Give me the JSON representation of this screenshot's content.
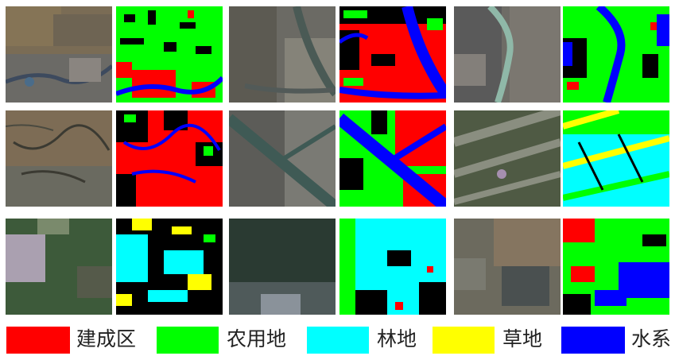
{
  "legend": [
    {
      "label": "建成区",
      "color": "#ff0000"
    },
    {
      "label": "农用地",
      "color": "#00ff00"
    },
    {
      "label": "林地",
      "color": "#00ffff"
    },
    {
      "label": "草地",
      "color": "#ffff00"
    },
    {
      "label": "水系",
      "color": "#0000ff"
    }
  ],
  "colors": {
    "background": "#000000",
    "built_up": "#ff0000",
    "farmland": "#00ff00",
    "forest": "#00ffff",
    "grassland": "#ffff00",
    "water": "#0000ff"
  },
  "grid": {
    "rows": 3,
    "pairs_per_row": 3,
    "tile_types": [
      "satellite-image",
      "classification-map"
    ]
  }
}
